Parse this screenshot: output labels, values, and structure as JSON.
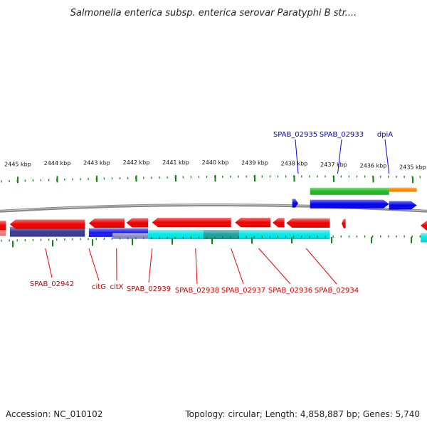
{
  "title": "Salmonella enterica subsp. enterica serovar Paratyphi B str....",
  "footer": {
    "accession": "Accession: NC_010102",
    "summary": "Topology: circular; Length: 4,858,887 bp; Genes: 5,740"
  },
  "colors": {
    "cds": "#ee0000",
    "gene_fwd": "#0000ee",
    "gene_rev": "#2222cc",
    "rna": "#22bb22",
    "misc": "#ff8800",
    "cyan": "#00e8e8",
    "navy": "#3a3a90",
    "pink": "#f08080",
    "tick": "#118811",
    "backbone": "#888888"
  },
  "chart_data": {
    "type": "genome-map",
    "topology": "circular",
    "length_bp": 4858887,
    "genes_total": 5740,
    "kbp_ticks": [
      {
        "label": "2445 kbp",
        "kbp": 2445
      },
      {
        "label": "2444 kbp",
        "kbp": 2444
      },
      {
        "label": "2443 kbp",
        "kbp": 2443
      },
      {
        "label": "2442 kbp",
        "kbp": 2442
      },
      {
        "label": "2441 kbp",
        "kbp": 2441
      },
      {
        "label": "2440 kbp",
        "kbp": 2440
      },
      {
        "label": "2439 kbp",
        "kbp": 2439
      },
      {
        "label": "2438 kbp",
        "kbp": 2438
      },
      {
        "label": "2437 kbp",
        "kbp": 2437
      },
      {
        "label": "2436 kbp",
        "kbp": 2436
      },
      {
        "label": "2435 kbp",
        "kbp": 2435
      }
    ],
    "forward_labels": [
      {
        "label": "SPAB_02935",
        "kbp": 2437.9
      },
      {
        "label": "SPAB_02933",
        "kbp": 2436.9
      },
      {
        "label": "dpiA",
        "kbp": 2435.6
      }
    ],
    "reverse_labels": [
      {
        "label": "SPAB_02942",
        "kbp": 2444.3
      },
      {
        "label": "citG",
        "kbp": 2443.2
      },
      {
        "label": "citX",
        "kbp": 2442.5
      },
      {
        "label": "SPAB_02939",
        "kbp": 2441.6
      },
      {
        "label": "SPAB_02938",
        "kbp": 2440.5
      },
      {
        "label": "SPAB_02937",
        "kbp": 2439.6
      },
      {
        "label": "SPAB_02936",
        "kbp": 2438.9
      },
      {
        "label": "SPAB_02934",
        "kbp": 2437.7
      }
    ],
    "forward_genes": [
      {
        "start_kbp": 2438.05,
        "end_kbp": 2437.9,
        "track": "gene",
        "strand": "+"
      },
      {
        "start_kbp": 2437.6,
        "end_kbp": 2435.6,
        "track": "gene",
        "strand": "+"
      },
      {
        "start_kbp": 2435.6,
        "end_kbp": 2434.9,
        "track": "gene",
        "strand": "+"
      },
      {
        "start_kbp": 2437.6,
        "end_kbp": 2435.6,
        "track": "rna",
        "strand": "+"
      },
      {
        "start_kbp": 2435.6,
        "end_kbp": 2434.9,
        "track": "misc",
        "strand": "+"
      }
    ],
    "reverse_genes": [
      {
        "start_kbp": 2446.2,
        "end_kbp": 2445.3,
        "track": "cds",
        "strand": "-"
      },
      {
        "start_kbp": 2445.2,
        "end_kbp": 2443.3,
        "track": "cds",
        "strand": "-"
      },
      {
        "start_kbp": 2443.2,
        "end_kbp": 2442.3,
        "track": "cds",
        "strand": "-"
      },
      {
        "start_kbp": 2442.25,
        "end_kbp": 2441.7,
        "track": "cds",
        "strand": "-"
      },
      {
        "start_kbp": 2441.6,
        "end_kbp": 2439.6,
        "track": "cds",
        "strand": "-"
      },
      {
        "start_kbp": 2439.5,
        "end_kbp": 2438.6,
        "track": "cds",
        "strand": "-"
      },
      {
        "start_kbp": 2438.55,
        "end_kbp": 2438.25,
        "track": "cds",
        "strand": "-"
      },
      {
        "start_kbp": 2438.2,
        "end_kbp": 2437.1,
        "track": "cds",
        "strand": "-"
      },
      {
        "start_kbp": 2436.8,
        "end_kbp": 2436.7,
        "track": "cds",
        "strand": "-"
      },
      {
        "start_kbp": 2434.8,
        "end_kbp": 2434.0,
        "track": "cds",
        "strand": "-"
      },
      {
        "start_kbp": 2446.2,
        "end_kbp": 2445.3,
        "track": "pink",
        "strand": "-"
      },
      {
        "start_kbp": 2445.2,
        "end_kbp": 2443.3,
        "track": "navy",
        "strand": "-"
      },
      {
        "start_kbp": 2443.2,
        "end_kbp": 2441.7,
        "track": "gene",
        "strand": "-"
      },
      {
        "start_kbp": 2442.6,
        "end_kbp": 2441.7,
        "track": "lavender",
        "strand": "-"
      },
      {
        "start_kbp": 2441.7,
        "end_kbp": 2437.1,
        "track": "cyan",
        "strand": "-"
      },
      {
        "start_kbp": 2440.3,
        "end_kbp": 2439.4,
        "track": "teal",
        "strand": "-"
      },
      {
        "start_kbp": 2434.8,
        "end_kbp": 2434.0,
        "track": "cyan",
        "strand": "-"
      }
    ]
  }
}
